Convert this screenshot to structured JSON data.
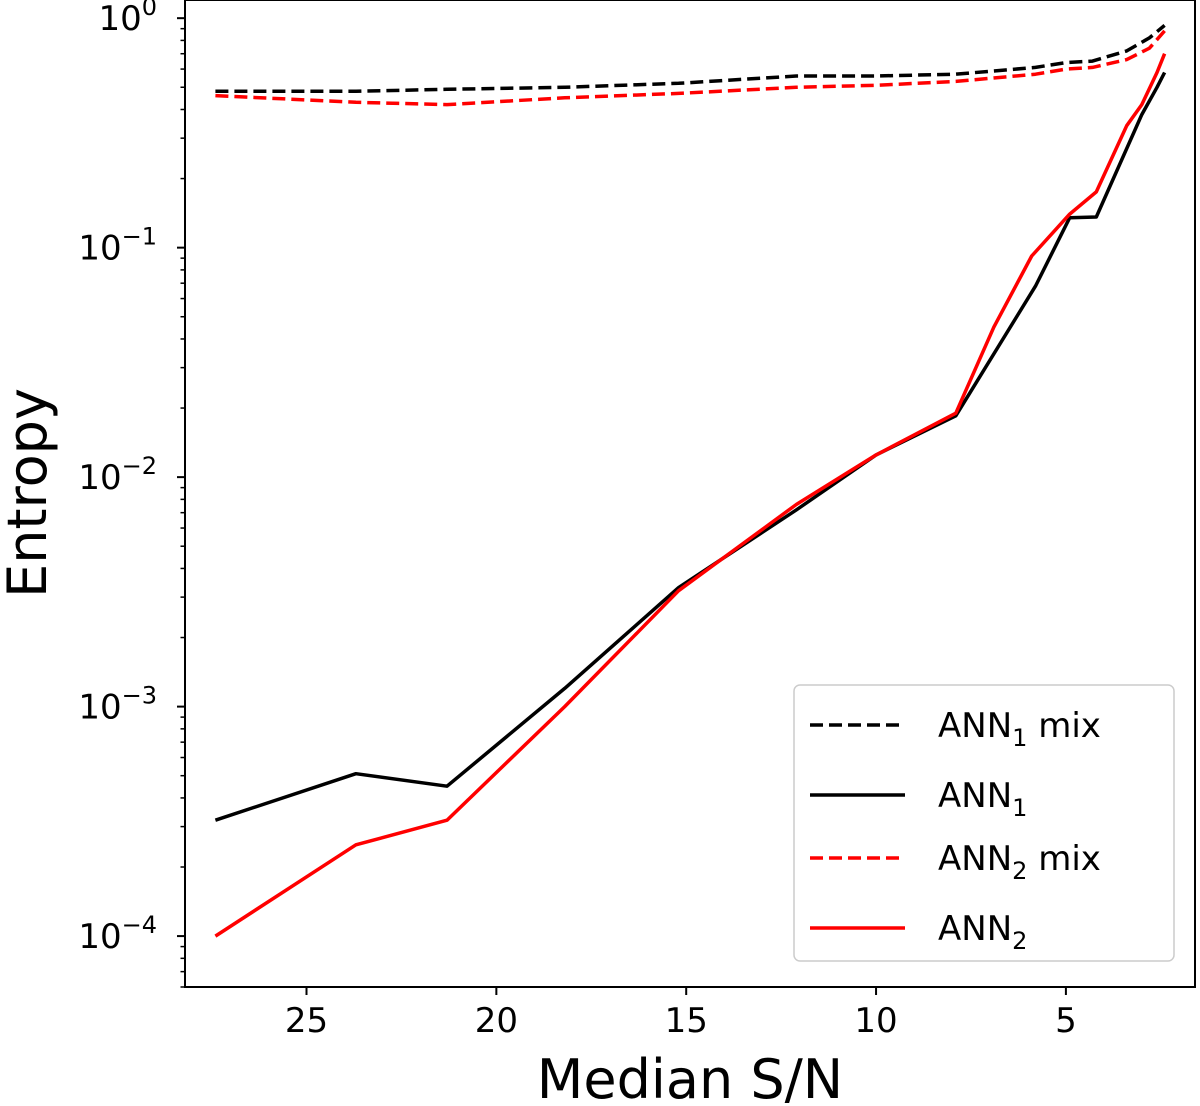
{
  "chart_data": {
    "type": "line",
    "title": "",
    "xlabel": "Median S/N",
    "ylabel": "Entropy",
    "xscale": "linear",
    "yscale": "log",
    "x_inverted": true,
    "xlim": [
      28.2,
      1.6
    ],
    "ylim": [
      6e-05,
      1.2
    ],
    "xticks": [
      25,
      20,
      15,
      10,
      5
    ],
    "xtick_labels": [
      "25",
      "20",
      "15",
      "10",
      "5"
    ],
    "yticks": [
      0.0001,
      0.001,
      0.01,
      0.1,
      1
    ],
    "ytick_labels": [
      {
        "base": "10",
        "exp": "−4"
      },
      {
        "base": "10",
        "exp": "−3"
      },
      {
        "base": "10",
        "exp": "−2"
      },
      {
        "base": "10",
        "exp": "−1"
      },
      {
        "base": "10",
        "exp": "0"
      }
    ],
    "legend_position": "lower-right",
    "series": [
      {
        "name": "ANN1 mix",
        "legend_main": "ANN",
        "legend_sub": "1",
        "legend_suffix": " mix",
        "color": "#000000",
        "dash": "dashed",
        "x": [
          27.4,
          23.7,
          21.3,
          18.2,
          15.2,
          12.1,
          10.0,
          7.9,
          5.8,
          5.0,
          4.3,
          3.4,
          2.8,
          2.4
        ],
        "y": [
          0.48,
          0.48,
          0.49,
          0.5,
          0.52,
          0.56,
          0.56,
          0.57,
          0.61,
          0.64,
          0.65,
          0.72,
          0.82,
          0.93
        ]
      },
      {
        "name": "ANN1",
        "legend_main": " ANN",
        "legend_sub": "1",
        "legend_suffix": "",
        "color": "#000000",
        "dash": "solid",
        "x": [
          27.4,
          23.7,
          21.3,
          18.2,
          15.2,
          12.1,
          10.0,
          7.9,
          5.8,
          4.9,
          4.2,
          3.0,
          2.6,
          2.4
        ],
        "y": [
          0.00032,
          0.00051,
          0.00045,
          0.0012,
          0.0033,
          0.0072,
          0.0125,
          0.0185,
          0.068,
          0.135,
          0.136,
          0.38,
          0.5,
          0.58
        ]
      },
      {
        "name": "ANN2 mix",
        "legend_main": "ANN",
        "legend_sub": "2",
        "legend_suffix": " mix",
        "color": "#ff0000",
        "dash": "dashed",
        "x": [
          27.4,
          23.7,
          21.3,
          18.2,
          15.2,
          12.1,
          10.0,
          7.9,
          5.8,
          5.0,
          4.3,
          3.4,
          2.8,
          2.4
        ],
        "y": [
          0.46,
          0.43,
          0.42,
          0.45,
          0.47,
          0.5,
          0.51,
          0.53,
          0.57,
          0.6,
          0.61,
          0.66,
          0.74,
          0.88
        ]
      },
      {
        "name": "ANN2",
        "legend_main": "ANN",
        "legend_sub": "2",
        "legend_suffix": "",
        "color": "#ff0000",
        "dash": "solid",
        "x": [
          27.4,
          23.7,
          21.3,
          18.2,
          15.2,
          12.1,
          10.0,
          7.9,
          6.9,
          5.9,
          4.9,
          4.2,
          3.4,
          3.0,
          2.6,
          2.4
        ],
        "y": [
          0.0001,
          0.00025,
          0.00032,
          0.001,
          0.0032,
          0.0076,
          0.0125,
          0.019,
          0.045,
          0.092,
          0.14,
          0.175,
          0.34,
          0.42,
          0.58,
          0.7
        ]
      }
    ]
  }
}
